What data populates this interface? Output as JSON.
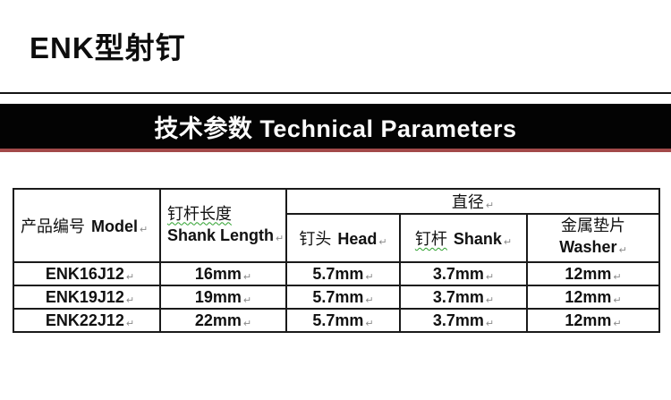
{
  "colors": {
    "banner_bg": "#030303",
    "accent_red": "#a34a4a",
    "grammar_underline_green": "#2ca02c"
  },
  "page_title": "ENK型射钉",
  "banner": {
    "title": "技术参数 Technical Parameters"
  },
  "table": {
    "eocell_mark": "↵",
    "header": {
      "model_zh": "产品编号",
      "model_en": "Model",
      "shank_length_zh": "钉杆长度",
      "shank_length_en": "Shank Length",
      "diameter_zh": "直径",
      "head_zh": "钉头",
      "head_en": "Head",
      "shank_zh": "钉杆",
      "shank_en": "Shank",
      "washer_zh": "金属垫片",
      "washer_en": "Washer"
    },
    "rows": [
      {
        "model": "ENK16J12",
        "shank_length": "16mm",
        "head": "5.7mm",
        "shank": "3.7mm",
        "washer": "12mm"
      },
      {
        "model": "ENK19J12",
        "shank_length": "19mm",
        "head": "5.7mm",
        "shank": "3.7mm",
        "washer": "12mm"
      },
      {
        "model": "ENK22J12",
        "shank_length": "22mm",
        "head": "5.7mm",
        "shank": "3.7mm",
        "washer": "12mm"
      }
    ]
  }
}
